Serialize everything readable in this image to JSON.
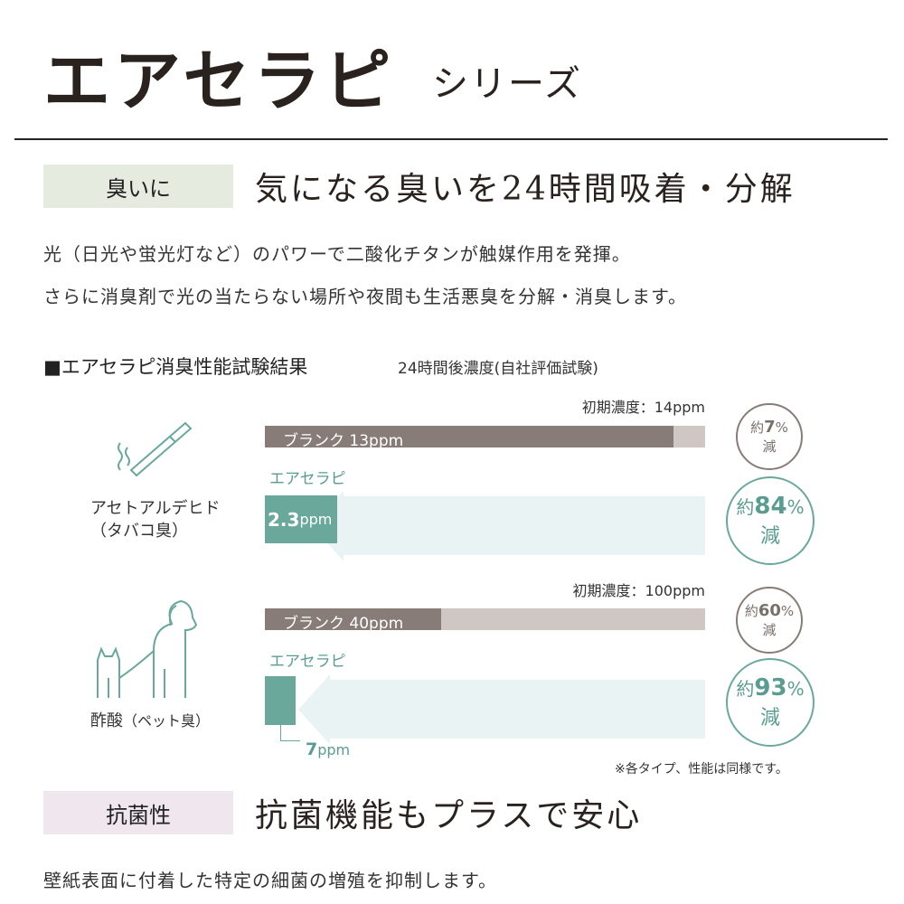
{
  "header": {
    "title": "エアセラピ",
    "subtitle": "シリーズ"
  },
  "deodor": {
    "tag": "臭いに",
    "headline": "気になる臭いを24時間吸着・分解",
    "body": [
      "光（日光や蛍光灯など）のパワーで二酸化チタンが触媒作用を発揮。",
      "さらに消臭剤で光の当たらない場所や夜間も生活悪臭を分解・消臭します。"
    ],
    "test_title": "■エアセラピ消臭性能試験結果",
    "test_subtitle": "24時間後濃度(自社評価試験)",
    "note": "※各タイプ、性能は同様です。"
  },
  "chart_data": {
    "type": "bar",
    "title": "■エアセラピ消臭性能試験結果",
    "subtitle": "24時間後濃度(自社評価試験)",
    "groups": [
      {
        "name": "アセトアルデヒド",
        "name2": "（タバコ臭）",
        "icon": "cigarette-icon",
        "initial_label": "初期濃度：14ppm",
        "initial": 14,
        "blank_label": "ブランク 13ppm",
        "blank": 13,
        "blank_reduction": {
          "prefix": "約",
          "value": "7",
          "unit": "%",
          "suffix": "減"
        },
        "product_label": "エアセラピ",
        "product_value_label": "2.3",
        "product_unit": "ppm",
        "product": 2.3,
        "product_reduction": {
          "prefix": "約",
          "value": "84",
          "unit": "%",
          "suffix": "減"
        }
      },
      {
        "name": "酢酸",
        "name2": "（ペット臭）",
        "icon": "dog-cat-icon",
        "initial_label": "初期濃度：100ppm",
        "initial": 100,
        "blank_label": "ブランク 40ppm",
        "blank": 40,
        "blank_reduction": {
          "prefix": "約",
          "value": "60",
          "unit": "%",
          "suffix": "減"
        },
        "product_label": "エアセラピ",
        "product_value_label": "7",
        "product_unit": "ppm",
        "product": 7,
        "product_reduction": {
          "prefix": "約",
          "value": "93",
          "unit": "%",
          "suffix": "減"
        }
      }
    ],
    "colors": {
      "blank": "#877c77",
      "initial": "#cfc7c3",
      "product": "#6aa89c",
      "arrow": "#eaf3f4"
    }
  },
  "antibac": {
    "tag": "抗菌性",
    "headline": "抗菌機能もプラスで安心",
    "body": "壁紙表面に付着した特定の細菌の増殖を抑制します。"
  }
}
